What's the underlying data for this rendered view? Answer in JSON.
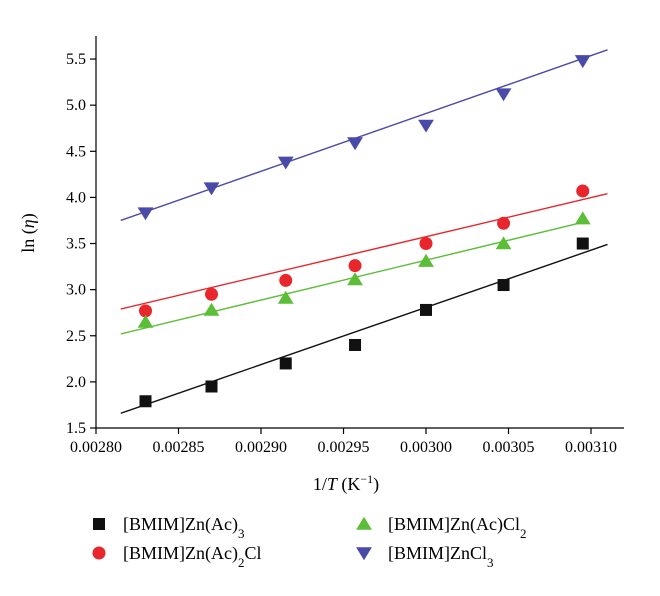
{
  "chart_data": {
    "type": "scatter",
    "xlim": [
      0.0028,
      0.00312
    ],
    "ylim": [
      1.5,
      5.75
    ],
    "xticks": [
      0.0028,
      0.00285,
      0.0029,
      0.00295,
      0.003,
      0.00305,
      0.0031
    ],
    "xtick_labels": [
      "0.00280",
      "0.00285",
      "0.00290",
      "0.00295",
      "0.00300",
      "0.00305",
      "0.00310"
    ],
    "yticks": [
      1.5,
      2.0,
      2.5,
      3.0,
      3.5,
      4.0,
      4.5,
      5.0,
      5.5
    ],
    "ytick_labels": [
      "1.5",
      "2.0",
      "2.5",
      "3.0",
      "3.5",
      "4.0",
      "4.5",
      "5.0",
      "5.5"
    ],
    "xlabel": {
      "pre": "1/",
      "var": "T",
      "mid": " (K",
      "sup": "−1",
      "post": ")"
    },
    "ylabel": {
      "pre": "ln (",
      "var": "η",
      "post": ")"
    },
    "grid": false,
    "legend_position": "bottom",
    "x": [
      0.00283,
      0.00287,
      0.002915,
      0.002957,
      0.003,
      0.003047,
      0.003095
    ],
    "series": [
      {
        "name": "[BMIM]Zn(Ac)3",
        "name_base": "[BMIM]Zn(Ac)",
        "name_sub": "3",
        "name_tail": "",
        "marker": "square",
        "color": "#111111",
        "line_color": "#111111",
        "values": [
          1.79,
          1.95,
          2.2,
          2.4,
          2.78,
          3.05,
          3.5
        ],
        "fit_line": {
          "x": [
            0.002815,
            0.00311
          ],
          "y": [
            1.66,
            3.49
          ]
        }
      },
      {
        "name": "[BMIM]Zn(Ac)2Cl",
        "name_base": "[BMIM]Zn(Ac)",
        "name_sub": "2",
        "name_tail": "Cl",
        "marker": "circle",
        "color": "#e8262b",
        "line_color": "#e8262b",
        "values": [
          2.77,
          2.95,
          3.1,
          3.26,
          3.5,
          3.72,
          4.07
        ],
        "fit_line": {
          "x": [
            0.002815,
            0.00311
          ],
          "y": [
            2.79,
            4.04
          ]
        }
      },
      {
        "name": "[BMIM]Zn(Ac)Cl2",
        "name_base": "[BMIM]Zn(Ac)Cl",
        "name_sub": "2",
        "name_tail": "",
        "marker": "triangle-up",
        "color": "#5cbd37",
        "line_color": "#5cbd37",
        "values": [
          2.65,
          2.78,
          2.91,
          3.11,
          3.31,
          3.5,
          3.77
        ],
        "fit_line": {
          "x": [
            0.002815,
            0.003095
          ],
          "y": [
            2.52,
            3.73
          ]
        }
      },
      {
        "name": "[BMIM]ZnCl3",
        "name_base": "[BMIM]ZnCl",
        "name_sub": "3",
        "name_tail": "",
        "marker": "triangle-down",
        "color": "#4a4ba8",
        "line_color": "#4a4ba8",
        "values": [
          3.83,
          4.1,
          4.38,
          4.59,
          4.78,
          5.12,
          5.48
        ],
        "fit_line": {
          "x": [
            0.002815,
            0.00311
          ],
          "y": [
            3.75,
            5.6
          ]
        }
      }
    ]
  }
}
